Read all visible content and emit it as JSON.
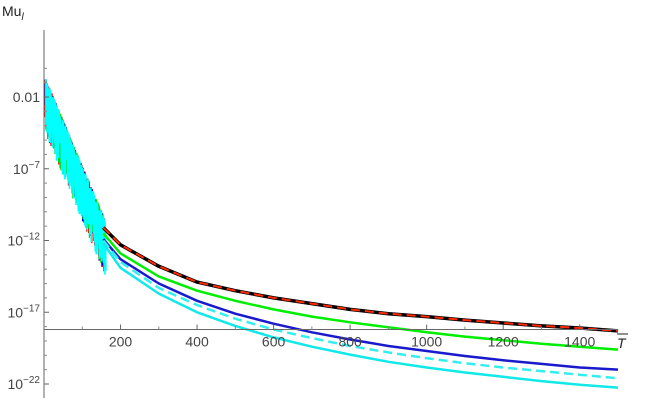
{
  "chart_data": {
    "type": "line",
    "title": "",
    "ylabel": "Mu",
    "ylabel_subscript": "l",
    "xlabel": "T",
    "xlabel_overbar": true,
    "y_scale": "log",
    "xlim": [
      0,
      1500
    ],
    "ylim_log10": [
      -23,
      0.5
    ],
    "x_ticks": [
      200,
      400,
      600,
      800,
      1000,
      1200,
      1400
    ],
    "x_tick_labels": [
      "200",
      "400",
      "600",
      "800",
      "1000",
      "1200",
      "1400"
    ],
    "y_ticks_log10": [
      -2,
      -7,
      -12,
      -17,
      -22
    ],
    "y_tick_labels": [
      {
        "base": "0.01",
        "exp": ""
      },
      {
        "base": "10",
        "exp": "−7"
      },
      {
        "base": "10",
        "exp": "−12"
      },
      {
        "base": "10",
        "exp": "−17"
      },
      {
        "base": "10",
        "exp": "−22"
      }
    ],
    "x_axis_crosses_y_log10": -18.2,
    "grid": false,
    "legend": "none",
    "noise_region": {
      "x_start": 0,
      "x_end": 160,
      "color_order": [
        "#ff0000",
        "#0000cc",
        "#00dd00",
        "#00ffff"
      ]
    },
    "series": [
      {
        "color": "#000000",
        "dash": "solid",
        "width": 3.5,
        "x": [
          155,
          200,
          300,
          400,
          500,
          600,
          700,
          800,
          900,
          1000,
          1100,
          1200,
          1300,
          1400,
          1500
        ],
        "y_log10": [
          -11.1,
          -12.3,
          -13.8,
          -14.9,
          -15.5,
          -16.0,
          -16.4,
          -16.8,
          -17.1,
          -17.3,
          -17.55,
          -17.75,
          -17.95,
          -18.1,
          -18.3
        ]
      },
      {
        "color": "#ff2a00",
        "dash": "dashed",
        "width": 2,
        "x": [
          155,
          200,
          300,
          400,
          500,
          600,
          700,
          800,
          900,
          1000,
          1100,
          1200,
          1300,
          1400,
          1500
        ],
        "y_log10": [
          -11.1,
          -12.3,
          -13.8,
          -14.9,
          -15.5,
          -16.0,
          -16.4,
          -16.8,
          -17.1,
          -17.3,
          -17.55,
          -17.75,
          -17.95,
          -18.1,
          -18.3
        ]
      },
      {
        "color": "#00ee00",
        "dash": "solid",
        "width": 2.5,
        "x": [
          155,
          200,
          300,
          400,
          500,
          600,
          700,
          800,
          900,
          1000,
          1100,
          1200,
          1300,
          1400,
          1500
        ],
        "y_log10": [
          -11.5,
          -12.9,
          -14.5,
          -15.5,
          -16.2,
          -16.8,
          -17.3,
          -17.7,
          -18.05,
          -18.4,
          -18.7,
          -18.95,
          -19.2,
          -19.4,
          -19.6
        ]
      },
      {
        "color": "#1a1acc",
        "dash": "solid",
        "width": 2.5,
        "x": [
          155,
          200,
          300,
          400,
          500,
          600,
          700,
          800,
          900,
          1000,
          1100,
          1200,
          1300,
          1400,
          1500
        ],
        "y_log10": [
          -11.9,
          -13.3,
          -15.0,
          -16.2,
          -17.1,
          -17.8,
          -18.4,
          -18.9,
          -19.35,
          -19.7,
          -20.05,
          -20.35,
          -20.6,
          -20.85,
          -21.0
        ]
      },
      {
        "color": "#33eeee",
        "dash": "dashed",
        "width": 2.5,
        "x": [
          155,
          200,
          300,
          400,
          500,
          600,
          700,
          800,
          900,
          1000,
          1100,
          1200,
          1300,
          1400,
          1500
        ],
        "y_log10": [
          -12.0,
          -13.5,
          -15.3,
          -16.5,
          -17.45,
          -18.2,
          -18.8,
          -19.35,
          -19.8,
          -20.2,
          -20.55,
          -20.85,
          -21.1,
          -21.35,
          -21.6
        ]
      },
      {
        "color": "#11e8e8",
        "dash": "solid",
        "width": 2.5,
        "x": [
          155,
          200,
          300,
          400,
          500,
          600,
          700,
          800,
          900,
          1000,
          1100,
          1200,
          1300,
          1400,
          1500
        ],
        "y_log10": [
          -12.2,
          -13.9,
          -15.7,
          -17.0,
          -17.95,
          -18.75,
          -19.4,
          -19.95,
          -20.45,
          -20.85,
          -21.2,
          -21.5,
          -21.8,
          -22.05,
          -22.25
        ]
      }
    ]
  }
}
